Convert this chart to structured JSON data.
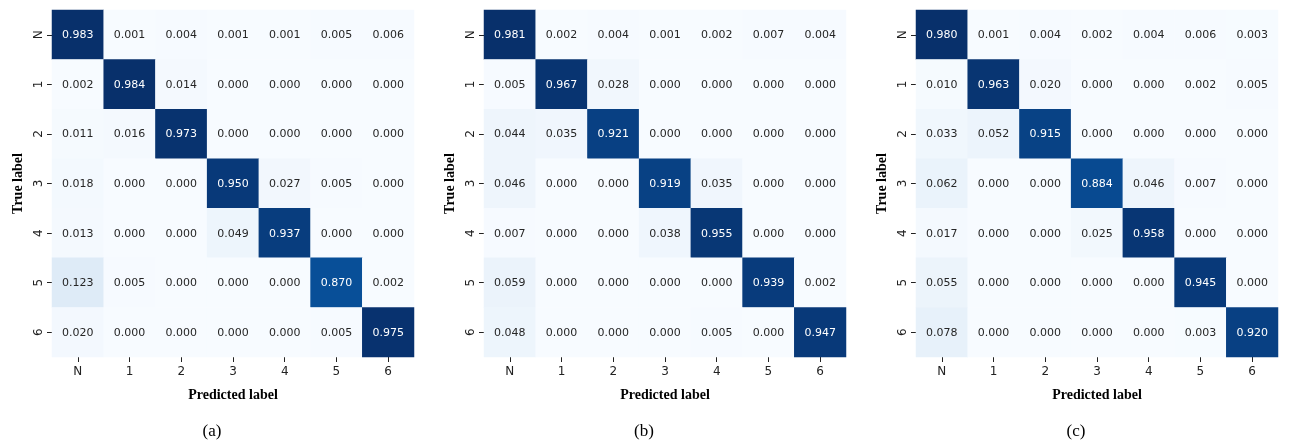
{
  "chart_data": [
    {
      "type": "heatmap",
      "title": "(a)",
      "xlabel": "Predicted label",
      "ylabel": "True label",
      "categories": [
        "N",
        "1",
        "2",
        "3",
        "4",
        "5",
        "6"
      ],
      "y_categories": [
        "N",
        "1",
        "2",
        "3",
        "4",
        "5",
        "6"
      ],
      "cells": [
        [
          0.983,
          0.001,
          0.004,
          0.001,
          0.001,
          0.005,
          0.006
        ],
        [
          0.002,
          0.984,
          0.014,
          0,
          0,
          0,
          0
        ],
        [
          0.011,
          0.016,
          0.973,
          0,
          0,
          0,
          0
        ],
        [
          0.018,
          0,
          0,
          0.95,
          0.027,
          0.005,
          0
        ],
        [
          0.013,
          0,
          0,
          0.049,
          0.937,
          0,
          0
        ],
        [
          0.123,
          0.005,
          0,
          0,
          0,
          0.87,
          0.002
        ],
        [
          0.02,
          0,
          0,
          0,
          0,
          0.005,
          0.975
        ]
      ],
      "cell_labels": [
        [
          "0.983",
          "0.001",
          "0.004",
          "0.001",
          "0.001",
          "0.005",
          "0.006"
        ],
        [
          "0.002",
          "0.984",
          "0.014",
          "0.000",
          "0.000",
          "0.000",
          "0.000"
        ],
        [
          "0.011",
          "0.016",
          "0.973",
          "0.000",
          "0.000",
          "0.000",
          "0.000"
        ],
        [
          "0.018",
          "0.000",
          "0.000",
          "0.950",
          "0.027",
          "0.005",
          "0.000"
        ],
        [
          "0.013",
          "0.000",
          "0.000",
          "0.049",
          "0.937",
          "0.000",
          "0.000"
        ],
        [
          "0.123",
          "0.005",
          "0.000",
          "0.000",
          "0.000",
          "0.870",
          "0.002"
        ],
        [
          "0.020",
          "0.000",
          "0.000",
          "0.000",
          "0.000",
          "0.005",
          "0.975"
        ]
      ]
    },
    {
      "type": "heatmap",
      "title": "(b)",
      "xlabel": "Predicted label",
      "ylabel": "True label",
      "categories": [
        "N",
        "1",
        "2",
        "3",
        "4",
        "5",
        "6"
      ],
      "y_categories": [
        "N",
        "1",
        "2",
        "3",
        "4",
        "5",
        "6"
      ],
      "cells": [
        [
          0.981,
          0.002,
          0.004,
          0.001,
          0.002,
          0.007,
          0.004
        ],
        [
          0.005,
          0.967,
          0.028,
          0,
          0,
          0,
          0
        ],
        [
          0.044,
          0.035,
          0.921,
          0,
          0,
          0,
          0
        ],
        [
          0.046,
          0,
          0,
          0.919,
          0.035,
          0,
          0
        ],
        [
          0.007,
          0,
          0,
          0.038,
          0.955,
          0,
          0
        ],
        [
          0.059,
          0,
          0,
          0,
          0,
          0.939,
          0.002
        ],
        [
          0.048,
          0,
          0,
          0,
          0.005,
          0,
          0.947
        ]
      ],
      "cell_labels": [
        [
          "0.981",
          "0.002",
          "0.004",
          "0.001",
          "0.002",
          "0.007",
          "0.004"
        ],
        [
          "0.005",
          "0.967",
          "0.028",
          "0.000",
          "0.000",
          "0.000",
          "0.000"
        ],
        [
          "0.044",
          "0.035",
          "0.921",
          "0.000",
          "0.000",
          "0.000",
          "0.000"
        ],
        [
          "0.046",
          "0.000",
          "0.000",
          "0.919",
          "0.035",
          "0.000",
          "0.000"
        ],
        [
          "0.007",
          "0.000",
          "0.000",
          "0.038",
          "0.955",
          "0.000",
          "0.000"
        ],
        [
          "0.059",
          "0.000",
          "0.000",
          "0.000",
          "0.000",
          "0.939",
          "0.002"
        ],
        [
          "0.048",
          "0.000",
          "0.000",
          "0.000",
          "0.005",
          "0.000",
          "0.947"
        ]
      ]
    },
    {
      "type": "heatmap",
      "title": "(c)",
      "xlabel": "Predicted label",
      "ylabel": "True label",
      "categories": [
        "N",
        "1",
        "2",
        "3",
        "4",
        "5",
        "6"
      ],
      "y_categories": [
        "N",
        "1",
        "2",
        "3",
        "4",
        "5",
        "6"
      ],
      "cells": [
        [
          0.98,
          0.001,
          0.004,
          0.002,
          0.004,
          0.006,
          0.003
        ],
        [
          0.01,
          0.963,
          0.02,
          0,
          0,
          0.002,
          0.005
        ],
        [
          0.033,
          0.052,
          0.915,
          0,
          0,
          0,
          0
        ],
        [
          0.062,
          0,
          0,
          0.884,
          0.046,
          0.007,
          0
        ],
        [
          0.017,
          0,
          0,
          0.025,
          0.958,
          0,
          0
        ],
        [
          0.055,
          0,
          0,
          0,
          0,
          0.945,
          0
        ],
        [
          0.078,
          0,
          0,
          0,
          0,
          0.003,
          0.92
        ]
      ],
      "cell_labels": [
        [
          "0.980",
          "0.001",
          "0.004",
          "0.002",
          "0.004",
          "0.006",
          "0.003"
        ],
        [
          "0.010",
          "0.963",
          "0.020",
          "0.000",
          "0.000",
          "0.002",
          "0.005"
        ],
        [
          "0.033",
          "0.052",
          "0.915",
          "0.000",
          "0.000",
          "0.000",
          "0.000"
        ],
        [
          "0.062",
          "0.000",
          "0.000",
          "0.884",
          "0.046",
          "0.007",
          "0.000"
        ],
        [
          "0.017",
          "0.000",
          "0.000",
          "0.025",
          "0.958",
          "0.000",
          "0.000"
        ],
        [
          "0.055",
          "0.000",
          "0.000",
          "0.000",
          "0.000",
          "0.945",
          "0.000"
        ],
        [
          "0.078",
          "0.000",
          "0.000",
          "0.000",
          "0.000",
          "0.003",
          "0.920"
        ]
      ]
    }
  ]
}
